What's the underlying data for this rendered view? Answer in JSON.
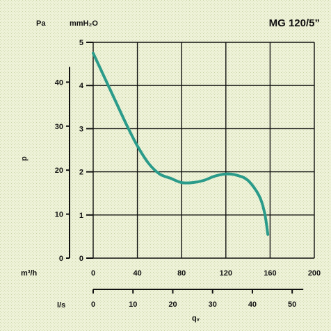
{
  "chart_data": {
    "type": "line",
    "title": "MG 120/5”",
    "background": "#eef2d8",
    "curve_color": "#2a9b8a",
    "grid": true,
    "y_left_primary": {
      "unit": "Pa",
      "label": "p",
      "ticks": [
        0,
        10,
        20,
        30,
        40
      ],
      "range": [
        0,
        49.05
      ]
    },
    "y_left_secondary": {
      "unit": "mmH₂O",
      "ticks": [
        0,
        1,
        2,
        3,
        4,
        5
      ],
      "range": [
        0,
        5
      ]
    },
    "x_primary": {
      "unit": "m³/h",
      "ticks": [
        0,
        40,
        80,
        120,
        160,
        200
      ],
      "range": [
        0,
        200
      ]
    },
    "x_secondary": {
      "unit": "l/s",
      "ticks": [
        0,
        10,
        20,
        30,
        40,
        50
      ],
      "range": [
        0,
        55.56
      ],
      "label": "qᵥ"
    },
    "series": [
      {
        "x": [
          0,
          10,
          20,
          30,
          40,
          50,
          60,
          70,
          80,
          90,
          100,
          110,
          120,
          130,
          140,
          150,
          155,
          158
        ],
        "y": [
          4.75,
          4.2,
          3.65,
          3.1,
          2.6,
          2.2,
          1.95,
          1.85,
          1.75,
          1.75,
          1.8,
          1.9,
          1.95,
          1.92,
          1.8,
          1.45,
          1.05,
          0.55
        ]
      }
    ]
  }
}
